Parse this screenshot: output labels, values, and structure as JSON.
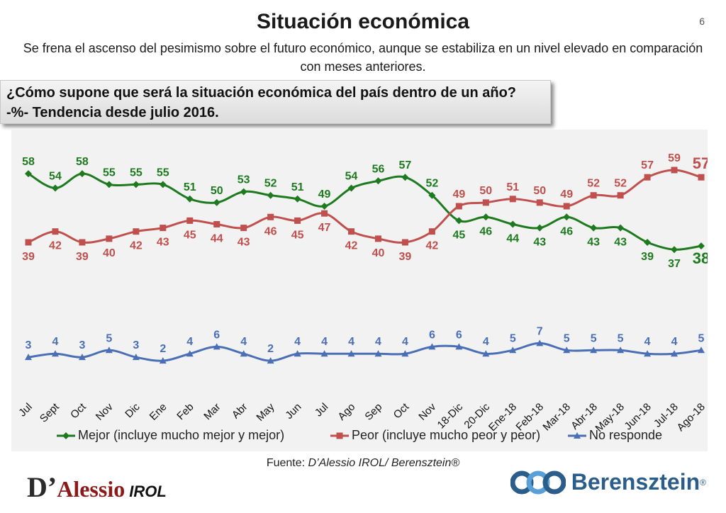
{
  "header": {
    "title": "Situación económica",
    "page_number": "6",
    "subtitle": "Se frena el ascenso del pesimismo sobre el futuro económico, aunque se estabiliza en un nivel elevado en comparación con meses anteriores."
  },
  "question": {
    "line1": "¿Cómo supone que será la situación económica del país dentro de un año?",
    "line2": "-%- Tendencia desde julio 2016."
  },
  "footer": {
    "source_label": "Fuente: ",
    "source_name": "D’Alessio IROL/ Berensztein®",
    "logo_left_main": "D’",
    "logo_left_name": "Alessio",
    "logo_left_irol": "IROL",
    "logo_right_name": "Berensztein",
    "logo_right_reg": "®"
  },
  "colors": {
    "mejor": "#1e7a1e",
    "peor": "#c0504d",
    "no_responde": "#4a6fb5",
    "plot_bg": "#f2f2f2"
  },
  "chart_data": {
    "type": "line",
    "title": "",
    "xlabel": "",
    "ylabel": "",
    "ylim": [
      0,
      65
    ],
    "grid": false,
    "legend_position": "bottom",
    "categories": [
      "Jul",
      "Sept",
      "Oct",
      "Nov",
      "Dic",
      "Ene",
      "Feb",
      "Mar",
      "Abr",
      "May",
      "Jun",
      "Jul",
      "Ago",
      "Sep",
      "Oct",
      "Nov",
      "18-Dic",
      "20-Dic",
      "Ene-18",
      "Feb-18",
      "Mar-18",
      "Abr-18",
      "May-18",
      "Jun-18",
      "Jul-18",
      "Ago-18"
    ],
    "series": [
      {
        "name": "Mejor (incluye mucho mejor y mejor)",
        "marker": "diamond",
        "color": "#1e7a1e",
        "values": [
          58,
          54,
          58,
          55,
          55,
          55,
          51,
          50,
          53,
          52,
          51,
          49,
          54,
          56,
          57,
          52,
          45,
          46,
          44,
          43,
          46,
          43,
          43,
          39,
          37,
          38
        ]
      },
      {
        "name": "Peor (incluye mucho peor y peor)",
        "marker": "square",
        "color": "#c0504d",
        "values": [
          39,
          42,
          39,
          40,
          42,
          43,
          45,
          44,
          43,
          46,
          45,
          47,
          42,
          40,
          39,
          42,
          49,
          50,
          51,
          50,
          49,
          52,
          52,
          57,
          59,
          57
        ]
      },
      {
        "name": "No responde",
        "marker": "triangle",
        "color": "#4a6fb5",
        "values": [
          3,
          4,
          3,
          5,
          3,
          2,
          4,
          6,
          4,
          2,
          4,
          4,
          4,
          4,
          4,
          6,
          6,
          4,
          5,
          7,
          5,
          5,
          5,
          4,
          4,
          5
        ]
      }
    ]
  }
}
